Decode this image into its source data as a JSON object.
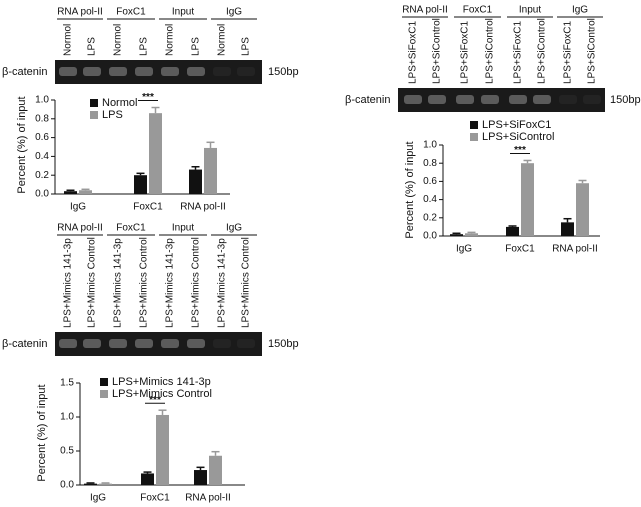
{
  "gels": [
    {
      "target": "β-catenin",
      "size": "150bp",
      "groups": [
        "RNA pol-II",
        "FoxC1",
        "Input",
        "IgG"
      ],
      "lanes": [
        "Normol",
        "LPS"
      ]
    },
    {
      "target": "β-catenin",
      "size": "150bp",
      "groups": [
        "RNA pol-II",
        "FoxC1",
        "Input",
        "IgG"
      ],
      "lanes": [
        "LPS+SiFoxC1",
        "LPS+SiControl"
      ]
    },
    {
      "target": "β-catenin",
      "size": "150bp",
      "groups": [
        "RNA pol-II",
        "FoxC1",
        "Input",
        "IgG"
      ],
      "lanes": [
        "LPS+Mimics 141-3p",
        "LPS+Mimics Control"
      ]
    }
  ],
  "chart_data": [
    {
      "type": "bar",
      "y_label": "Percent (%) of input",
      "categories": [
        "IgG",
        "FoxC1",
        "RNA pol-II"
      ],
      "series": [
        {
          "name": "Normol",
          "color": "#111111",
          "values": [
            0.03,
            0.2,
            0.26
          ],
          "errors": [
            0.01,
            0.02,
            0.03
          ]
        },
        {
          "name": "LPS",
          "color": "#999999",
          "values": [
            0.04,
            0.86,
            0.49
          ],
          "errors": [
            0.01,
            0.06,
            0.06
          ]
        }
      ],
      "ylim": [
        0,
        1
      ],
      "yticks": [
        {
          "value": 0,
          "label": "0.0"
        },
        0.2,
        0.4,
        0.6,
        0.8,
        {
          "value": 1,
          "label": "1.0"
        }
      ],
      "annotation": "***"
    },
    {
      "type": "bar",
      "y_label": "Percent (%) of input",
      "categories": [
        "IgG",
        "FoxC1",
        "RNA pol-II"
      ],
      "series": [
        {
          "name": "LPS+SiFoxC1",
          "color": "#111111",
          "values": [
            0.02,
            0.1,
            0.15
          ],
          "errors": [
            0.01,
            0.01,
            0.04
          ]
        },
        {
          "name": "LPS+SiControl",
          "color": "#999999",
          "values": [
            0.03,
            0.8,
            0.58
          ],
          "errors": [
            0.01,
            0.03,
            0.03
          ]
        }
      ],
      "ylim": [
        0,
        1
      ],
      "yticks": [
        {
          "value": 0,
          "label": "0.0"
        },
        0.2,
        0.4,
        0.6,
        0.8,
        {
          "value": 1,
          "label": "1.0"
        }
      ],
      "annotation": "***"
    },
    {
      "type": "bar",
      "y_label": "Percent (%) of input",
      "categories": [
        "IgG",
        "FoxC1",
        "RNA pol-II"
      ],
      "series": [
        {
          "name": "LPS+Mimics 141-3p",
          "color": "#111111",
          "values": [
            0.02,
            0.17,
            0.22
          ],
          "errors": [
            0.01,
            0.02,
            0.04
          ]
        },
        {
          "name": "LPS+Mimics Control",
          "color": "#999999",
          "values": [
            0.02,
            1.03,
            0.43
          ],
          "errors": [
            0.01,
            0.07,
            0.06
          ]
        }
      ],
      "ylim": [
        0,
        1.5
      ],
      "yticks": [
        {
          "value": 0,
          "label": "0.0"
        },
        0.5,
        {
          "value": 1,
          "label": "1.0"
        },
        1.5
      ],
      "annotation": "***"
    }
  ]
}
